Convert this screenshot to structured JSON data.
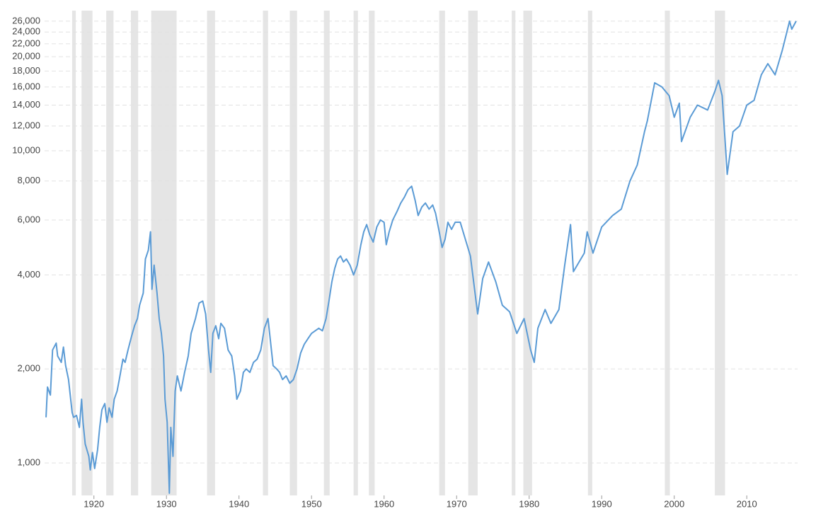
{
  "chart_data": {
    "type": "line",
    "log_scale": true,
    "grid": true,
    "color": "#5b9bd5",
    "shade_color": "#e5e5e5",
    "xlim": [
      1913.2,
      2017.0
    ],
    "ylim": [
      787,
      28100
    ],
    "xticks": [
      1920,
      1930,
      1940,
      1950,
      1960,
      1970,
      1980,
      1990,
      2000,
      2010
    ],
    "yticks": [
      {
        "value": 1000,
        "label": "1,000"
      },
      {
        "value": 2000,
        "label": "2,000"
      },
      {
        "value": 4000,
        "label": "4,000"
      },
      {
        "value": 6000,
        "label": "6,000"
      },
      {
        "value": 8000,
        "label": "8,000"
      },
      {
        "value": 10000,
        "label": "10,000"
      },
      {
        "value": 12000,
        "label": "12,000"
      },
      {
        "value": 14000,
        "label": "14,000"
      },
      {
        "value": 16000,
        "label": "16,000"
      },
      {
        "value": 18000,
        "label": "18,000"
      },
      {
        "value": 20000,
        "label": "20,000"
      },
      {
        "value": 22000,
        "label": "22,000"
      },
      {
        "value": 24000,
        "label": "24,000"
      },
      {
        "value": 26000,
        "label": "26,000"
      }
    ],
    "shaded_ranges": [
      [
        1917.0,
        1917.5
      ],
      [
        1918.3,
        1919.8
      ],
      [
        1921.7,
        1922.7
      ],
      [
        1925.1,
        1926.1
      ],
      [
        1927.9,
        1931.4
      ],
      [
        1935.6,
        1936.7
      ],
      [
        1943.3,
        1944.0
      ],
      [
        1947.0,
        1948.0
      ],
      [
        1951.7,
        1952.5
      ],
      [
        1955.8,
        1956.4
      ],
      [
        1957.9,
        1958.7
      ],
      [
        1967.6,
        1968.4
      ],
      [
        1971.6,
        1972.9
      ],
      [
        1977.6,
        1978.1
      ],
      [
        1979.2,
        1980.4
      ],
      [
        1988.1,
        1988.7
      ],
      [
        1998.7,
        1999.4
      ],
      [
        2005.6,
        2007.0
      ]
    ],
    "x": [
      1913.4,
      1913.6,
      1914.0,
      1914.3,
      1914.8,
      1915.0,
      1915.5,
      1915.8,
      1916.1,
      1916.5,
      1917.0,
      1917.2,
      1917.6,
      1918.0,
      1918.3,
      1918.5,
      1918.8,
      1919.3,
      1919.5,
      1919.8,
      1920.1,
      1920.5,
      1920.8,
      1921.1,
      1921.5,
      1921.8,
      1922.1,
      1922.5,
      1922.8,
      1923.2,
      1923.5,
      1924.0,
      1924.3,
      1924.7,
      1925.2,
      1925.6,
      1926.0,
      1926.3,
      1926.8,
      1927.1,
      1927.5,
      1927.8,
      1928.0,
      1928.3,
      1928.7,
      1929.0,
      1929.3,
      1929.6,
      1929.8,
      1930.1,
      1930.4,
      1930.6,
      1930.9,
      1931.2,
      1931.5,
      1932.0,
      1932.5,
      1933.0,
      1933.4,
      1934.0,
      1934.5,
      1935.0,
      1935.4,
      1935.8,
      1936.1,
      1936.4,
      1936.8,
      1937.2,
      1937.5,
      1938.0,
      1938.5,
      1939.0,
      1939.4,
      1939.7,
      1940.2,
      1940.6,
      1941.0,
      1941.5,
      1942.0,
      1942.5,
      1943.0,
      1943.5,
      1944.0,
      1944.3,
      1944.7,
      1945.2,
      1945.6,
      1946.0,
      1946.5,
      1947.0,
      1947.5,
      1948.0,
      1948.5,
      1949.0,
      1949.5,
      1950.0,
      1950.5,
      1951.0,
      1951.5,
      1952.0,
      1952.4,
      1952.8,
      1953.2,
      1953.6,
      1954.0,
      1954.4,
      1954.8,
      1955.3,
      1955.8,
      1956.3,
      1956.8,
      1957.2,
      1957.6,
      1958.0,
      1958.5,
      1959.0,
      1959.5,
      1960.0,
      1960.3,
      1960.7,
      1961.2,
      1961.8,
      1962.3,
      1962.8,
      1963.3,
      1963.8,
      1964.3,
      1964.7,
      1965.2,
      1965.7,
      1966.2,
      1966.7,
      1967.1,
      1967.6,
      1968.0,
      1968.4,
      1968.8,
      1969.3,
      1969.8,
      1970.5,
      1971.9,
      1972.9,
      1973.6,
      1974.4,
      1975.4,
      1976.3,
      1977.3,
      1978.3,
      1979.3,
      1980.2,
      1980.7,
      1981.2,
      1982.2,
      1983.0,
      1984.1,
      1984.9,
      1985.7,
      1986.1,
      1987.6,
      1988.0,
      1988.8,
      1990.0,
      1991.5,
      1992.7,
      1993.9,
      1994.9,
      1995.9,
      1996.3,
      1997.3,
      1998.3,
      1999.3,
      2000.0,
      2000.7,
      2001.0,
      2002.2,
      2003.2,
      2004.6,
      2005.6,
      2006.1,
      2006.6,
      2007.1,
      2007.3,
      2008.1,
      2009.0,
      2010.0,
      2011.0,
      2012.0,
      2012.9,
      2013.9,
      2014.9,
      2015.9,
      2016.2,
      2016.8
    ],
    "values": [
      1400,
      1750,
      1650,
      2300,
      2420,
      2200,
      2100,
      2350,
      2050,
      1850,
      1450,
      1400,
      1420,
      1300,
      1600,
      1350,
      1150,
      1050,
      950,
      1080,
      960,
      1100,
      1300,
      1480,
      1550,
      1350,
      1500,
      1400,
      1600,
      1700,
      1850,
      2150,
      2100,
      2300,
      2550,
      2750,
      2900,
      3200,
      3500,
      4500,
      4800,
      5500,
      3600,
      4300,
      3500,
      2900,
      2600,
      2200,
      1600,
      1350,
      800,
      1300,
      1050,
      1700,
      1900,
      1700,
      1950,
      2200,
      2600,
      2900,
      3250,
      3300,
      3000,
      2300,
      1950,
      2600,
      2750,
      2500,
      2800,
      2700,
      2300,
      2200,
      1900,
      1600,
      1700,
      1950,
      2000,
      1950,
      2100,
      2150,
      2300,
      2700,
      2900,
      2500,
      2050,
      2000,
      1950,
      1850,
      1900,
      1800,
      1850,
      2000,
      2250,
      2400,
      2500,
      2600,
      2650,
      2700,
      2650,
      2900,
      3300,
      3800,
      4200,
      4500,
      4600,
      4400,
      4500,
      4300,
      4000,
      4300,
      5000,
      5500,
      5800,
      5400,
      5100,
      5700,
      6000,
      5900,
      5000,
      5500,
      6000,
      6400,
      6800,
      7100,
      7500,
      7700,
      6900,
      6200,
      6600,
      6800,
      6500,
      6700,
      6300,
      5500,
      4900,
      5200,
      5900,
      5600,
      5900,
      5900,
      4600,
      3000,
      3900,
      4400,
      3800,
      3200,
      3050,
      2600,
      2900,
      2300,
      2100,
      2700,
      3100,
      2800,
      3100,
      4300,
      5800,
      4100,
      4700,
      5500,
      4700,
      5700,
      6200,
      6500,
      8000,
      9000,
      11500,
      12500,
      16500,
      16000,
      15000,
      12800,
      14200,
      10700,
      12800,
      14000,
      13500,
      15500,
      16800,
      15000,
      10000,
      8400,
      11500,
      12000,
      14000,
      14500,
      17500,
      19000,
      17500,
      21000,
      26000,
      24500,
      26000
    ]
  }
}
